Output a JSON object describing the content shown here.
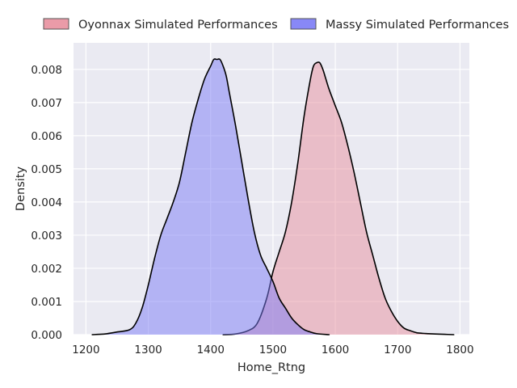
{
  "chart_data": {
    "type": "area",
    "xlabel": "Home_Rtng",
    "ylabel": "Density",
    "xlim": [
      1180,
      1815
    ],
    "ylim": [
      0,
      0.0088
    ],
    "xticks": [
      1200,
      1300,
      1400,
      1500,
      1600,
      1700,
      1800
    ],
    "yticks": [
      0.0,
      0.001,
      0.002,
      0.003,
      0.004,
      0.005,
      0.006,
      0.007,
      0.008
    ],
    "xtick_labels": [
      "1200",
      "1300",
      "1400",
      "1500",
      "1600",
      "1700",
      "1800"
    ],
    "ytick_labels": [
      "0.000",
      "0.001",
      "0.002",
      "0.003",
      "0.004",
      "0.005",
      "0.006",
      "0.007",
      "0.008"
    ],
    "grid": true,
    "legend_position": "top",
    "series": [
      {
        "name": "Oyonnax Simulated Performances",
        "color": "#e8909e",
        "x": [
          1420,
          1440,
          1460,
          1475,
          1490,
          1500,
          1510,
          1520,
          1530,
          1540,
          1550,
          1560,
          1565,
          1570,
          1575,
          1580,
          1585,
          1590,
          1600,
          1610,
          1620,
          1630,
          1640,
          1650,
          1660,
          1670,
          1680,
          1690,
          1700,
          1710,
          1720,
          1730,
          1740,
          1750,
          1760,
          1775,
          1790
        ],
        "y": [
          0,
          2e-05,
          0.00012,
          0.00035,
          0.0011,
          0.0019,
          0.0025,
          0.0031,
          0.004,
          0.0052,
          0.0066,
          0.0077,
          0.0081,
          0.0082,
          0.0082,
          0.008,
          0.0077,
          0.0074,
          0.0069,
          0.0064,
          0.0057,
          0.0049,
          0.004,
          0.0031,
          0.0024,
          0.0017,
          0.0011,
          0.0007,
          0.0004,
          0.0002,
          0.00012,
          6e-05,
          4e-05,
          3e-05,
          2e-05,
          1e-05,
          0
        ]
      },
      {
        "name": "Massy Simulated Performances",
        "color": "#7b7bf5",
        "x": [
          1210,
          1230,
          1250,
          1270,
          1280,
          1290,
          1300,
          1310,
          1320,
          1330,
          1340,
          1350,
          1360,
          1370,
          1380,
          1390,
          1400,
          1405,
          1410,
          1415,
          1420,
          1425,
          1430,
          1440,
          1450,
          1460,
          1470,
          1480,
          1490,
          1500,
          1510,
          1520,
          1530,
          1540,
          1550,
          1560,
          1570,
          1590
        ],
        "y": [
          0,
          2e-05,
          8e-05,
          0.00015,
          0.00035,
          0.0008,
          0.0015,
          0.0023,
          0.003,
          0.0035,
          0.004,
          0.0046,
          0.0055,
          0.0064,
          0.0071,
          0.0077,
          0.0081,
          0.0083,
          0.0083,
          0.0083,
          0.0081,
          0.0078,
          0.0073,
          0.0063,
          0.0052,
          0.0041,
          0.0031,
          0.0024,
          0.002,
          0.0016,
          0.0011,
          0.0008,
          0.0005,
          0.0003,
          0.00015,
          8e-05,
          3e-05,
          0
        ]
      }
    ]
  }
}
